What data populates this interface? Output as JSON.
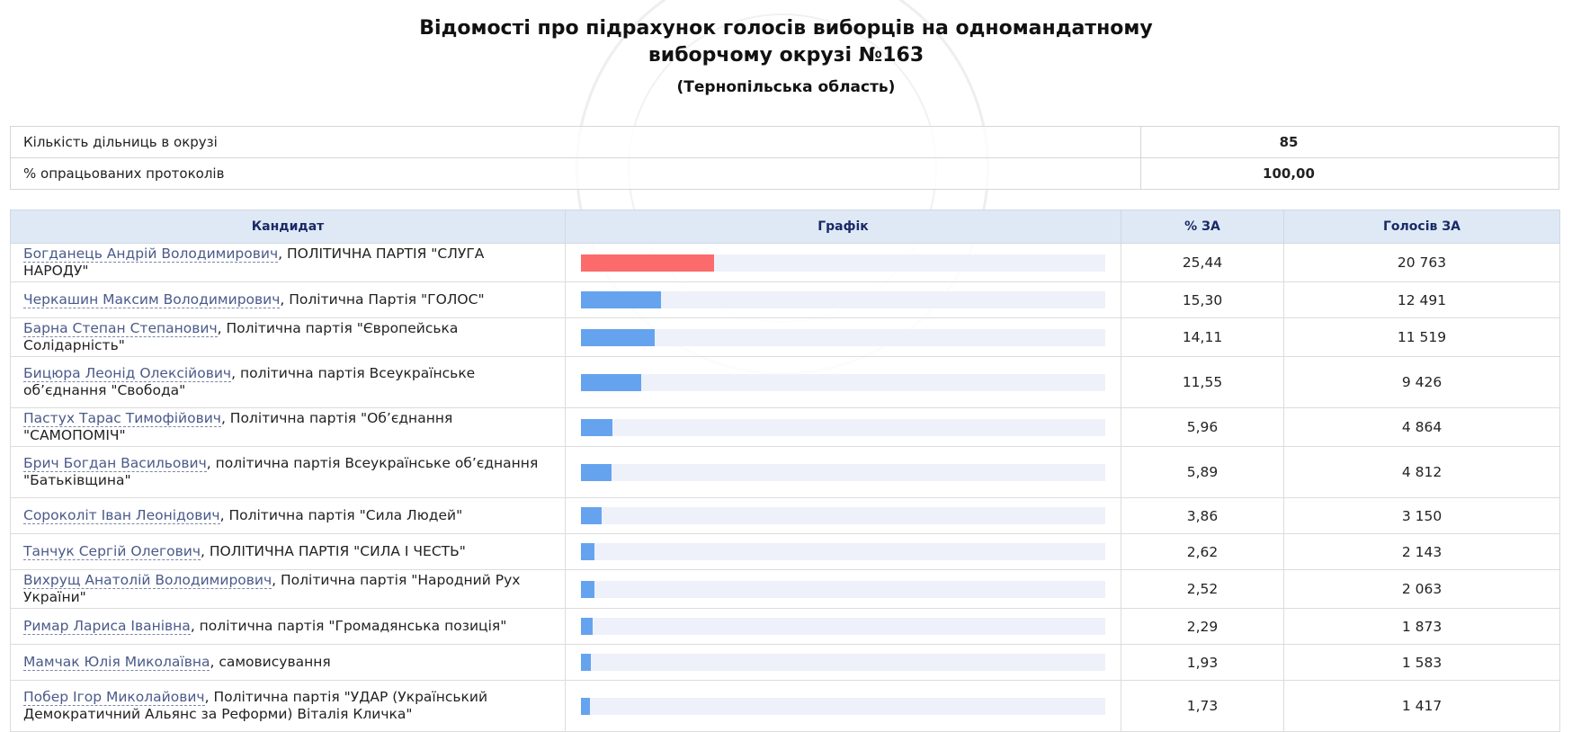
{
  "header": {
    "title_line1": "Відомості про підрахунок голосів виборців на одномандатному",
    "title_line2": "виборчому окрузі №163",
    "region": "(Тернопільська область)"
  },
  "summary": [
    {
      "label": "Кількість дільниць в окрузі",
      "value": "85"
    },
    {
      "label": "% опрацьованих протоколів",
      "value": "100,00"
    }
  ],
  "columns": {
    "candidate": "Кандидат",
    "chart": "Графік",
    "percent": "% ЗА",
    "votes": "Голосів ЗА"
  },
  "colors": {
    "leader_bar": "#fc6b6b",
    "bar": "#66a3ef",
    "bar_track": "#eef1fa",
    "header_bg": "#dfe9f6"
  },
  "chart_data": {
    "type": "bar",
    "categories": [
      "Богданець Андрій Володимирович",
      "Черкашин Максим Володимирович",
      "Барна Степан Степанович",
      "Бицюра Леонід Олексійович",
      "Пастух Тарас Тимофійович",
      "Брич Богдан Васильович",
      "Сороколіт Іван Леонідович",
      "Танчук Сергій Олегович",
      "Вихрущ Анатолій Володимирович",
      "Римар Лариса Іванівна",
      "Мамчак Юлія Миколаївна",
      "Побер Ігор Миколайович"
    ],
    "values": [
      25.44,
      15.3,
      14.11,
      11.55,
      5.96,
      5.89,
      3.86,
      2.62,
      2.52,
      2.29,
      1.93,
      1.73
    ],
    "ylim": [
      0,
      100
    ]
  },
  "candidates": [
    {
      "name": "Богданець Андрій Володимирович",
      "party": ", ПОЛІТИЧНА ПАРТІЯ \"СЛУГА НАРОДУ\"",
      "percent": "25,44",
      "votes": "20 763",
      "pct": 25.44,
      "lead": true
    },
    {
      "name": "Черкашин Максим Володимирович",
      "party": ", Політична Партія \"ГОЛОС\"",
      "percent": "15,30",
      "votes": "12 491",
      "pct": 15.3
    },
    {
      "name": "Барна Степан Степанович",
      "party": ", Політична партія \"Європейська Солідарність\"",
      "percent": "14,11",
      "votes": "11 519",
      "pct": 14.11
    },
    {
      "name": "Бицюра Леонід Олексійович",
      "party": ", політична партія Всеукраїнське об’єднання \"Свобода\"",
      "percent": "11,55",
      "votes": "9 426",
      "pct": 11.55,
      "tall": true
    },
    {
      "name": "Пастух Тарас Тимофійович",
      "party": ", Політична партія \"Об’єднання \"САМОПОМІЧ\"",
      "percent": "5,96",
      "votes": "4 864",
      "pct": 5.96
    },
    {
      "name": "Брич Богдан Васильович",
      "party": ", політична партія Всеукраїнське об’єднання \"Батьківщина\"",
      "percent": "5,89",
      "votes": "4 812",
      "pct": 5.89,
      "tall": true
    },
    {
      "name": "Сороколіт Іван Леонідович",
      "party": ", Політична партія \"Сила Людей\"",
      "percent": "3,86",
      "votes": "3 150",
      "pct": 3.86
    },
    {
      "name": "Танчук Сергій Олегович",
      "party": ", ПОЛІТИЧНА ПАРТІЯ \"СИЛА І ЧЕСТЬ\"",
      "percent": "2,62",
      "votes": "2 143",
      "pct": 2.62
    },
    {
      "name": "Вихрущ Анатолій Володимирович",
      "party": ", Політична партія \"Народний Рух України\"",
      "percent": "2,52",
      "votes": "2 063",
      "pct": 2.52
    },
    {
      "name": "Римар Лариса Іванівна",
      "party": ", політична партія \"Громадянська позиція\"",
      "percent": "2,29",
      "votes": "1 873",
      "pct": 2.29
    },
    {
      "name": "Мамчак Юлія Миколаївна",
      "party": ", самовисування",
      "percent": "1,93",
      "votes": "1 583",
      "pct": 1.93
    },
    {
      "name": "Побер Ігор Миколайович",
      "party": ", Політична партія \"УДАР (Український Демократичний Альянс за Реформи) Віталія Кличка\"",
      "percent": "1,73",
      "votes": "1 417",
      "pct": 1.73,
      "tall": true
    }
  ]
}
